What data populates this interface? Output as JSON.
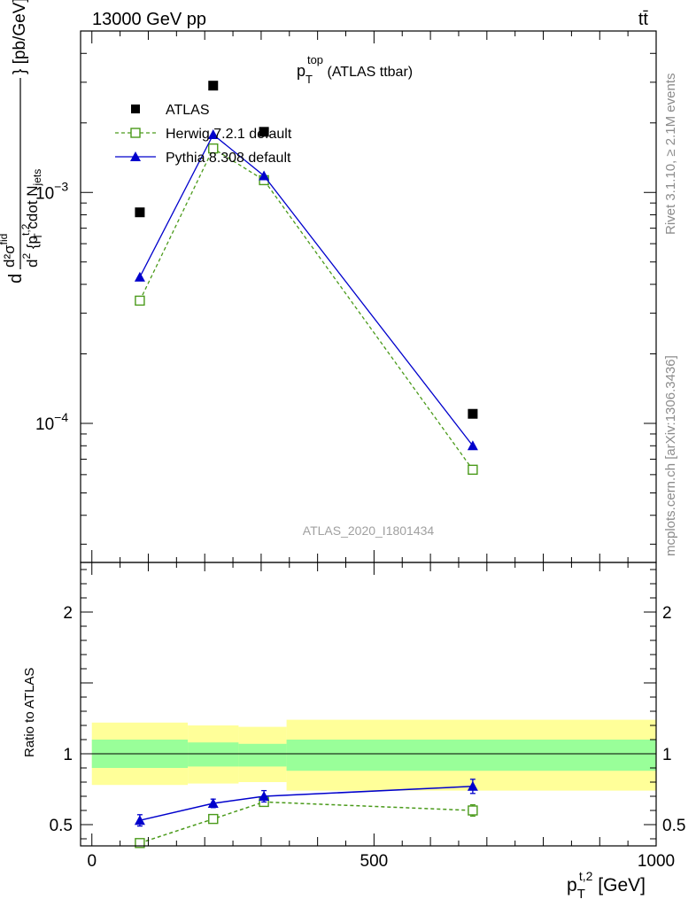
{
  "header": {
    "left": "13000 GeV pp",
    "right": "tt̄"
  },
  "side_labels": {
    "rivet": "Rivet 3.1.10, ≥ 2.1M events",
    "mcplots": "mcplots.cern.ch [arXiv:1306.3436]"
  },
  "watermark": "ATLAS_2020_I1801434",
  "chart_data": [
    {
      "type": "scatter",
      "title": {
        "main": "p",
        "sub": "T",
        "sup": "top",
        "rest": " (ATLAS ttbar)"
      },
      "ylabel": "d d²σ^fid / d² {p_T^t,2 cdot N_jets} [pb/GeV]",
      "ylabel_parts": {
        "d": "d",
        "num": "d²σ",
        "num_sup": "fid",
        "den_d": "d",
        "den_sup2": "2",
        "den_brace": " {p",
        "den_sup": "t,2",
        "den_sub": "T",
        "den_rest": " cdot N",
        "den_nsub": "jets",
        "tail": "} [pb/GeV]"
      },
      "yscale": "log",
      "ylim": [
        2.5e-05,
        0.005
      ],
      "xlim": [
        -20,
        1000
      ],
      "yticks": [
        {
          "v": 0.01,
          "base": "10",
          "exp": "−2"
        },
        {
          "v": 0.001,
          "base": "10",
          "exp": "−3"
        },
        {
          "v": 0.0001,
          "base": "10",
          "exp": "−4"
        }
      ],
      "legend_position": "top-left",
      "series": [
        {
          "name": "ATLAS",
          "style": "data",
          "color": "#000000",
          "x": [
            85,
            215,
            305,
            675
          ],
          "y": [
            0.00082,
            0.0029,
            0.00183,
            0.00011
          ]
        },
        {
          "name": "Herwig 7.2.1 default",
          "style": "open-square-dashed",
          "color": "#4a9a1a",
          "x": [
            85,
            215,
            305,
            675
          ],
          "y": [
            0.00034,
            0.00155,
            0.00113,
            6.3e-05
          ]
        },
        {
          "name": "Pythia 8.308 default",
          "style": "triangle-solid",
          "color": "#0000cc",
          "x": [
            85,
            215,
            305,
            675
          ],
          "y": [
            0.00043,
            0.00178,
            0.00118,
            8e-05
          ]
        }
      ]
    },
    {
      "type": "line",
      "ylabel": "Ratio to ATLAS",
      "xlabel": {
        "main": "p",
        "sub": "T",
        "sup": "t,2",
        "rest": " [GeV]"
      },
      "yscale": "linear",
      "ylim": [
        0.35,
        2.35
      ],
      "xlim": [
        -20,
        1000
      ],
      "yticks": [
        0.5,
        1,
        2
      ],
      "ytick_labels": [
        "0.5",
        "1",
        "2"
      ],
      "xticks": [
        0,
        500,
        1000
      ],
      "xtick_labels": [
        "0",
        "500",
        "1000"
      ],
      "uncertainty_bands": {
        "bins": [
          [
            0,
            170
          ],
          [
            170,
            260
          ],
          [
            260,
            345
          ],
          [
            345,
            1000
          ]
        ],
        "yellow": [
          [
            0.78,
            1.22
          ],
          [
            0.79,
            1.2
          ],
          [
            0.8,
            1.19
          ],
          [
            0.74,
            1.24
          ]
        ],
        "green": [
          [
            0.9,
            1.1
          ],
          [
            0.91,
            1.08
          ],
          [
            0.91,
            1.07
          ],
          [
            0.88,
            1.1
          ]
        ],
        "yellow_color": "#ffff99",
        "green_color": "#99ff99"
      },
      "series": [
        {
          "name": "Herwig 7.2.1 default",
          "color": "#4a9a1a",
          "style": "open-square-dashed",
          "x": [
            85,
            215,
            305,
            675
          ],
          "y": [
            0.37,
            0.54,
            0.66,
            0.6
          ],
          "err": [
            0.02,
            0.02,
            0.03,
            0.04
          ]
        },
        {
          "name": "Pythia 8.308 default",
          "color": "#0000cc",
          "style": "triangle-solid",
          "x": [
            85,
            215,
            305,
            675
          ],
          "y": [
            0.53,
            0.65,
            0.7,
            0.77
          ],
          "err": [
            0.04,
            0.03,
            0.04,
            0.05
          ]
        }
      ]
    }
  ]
}
